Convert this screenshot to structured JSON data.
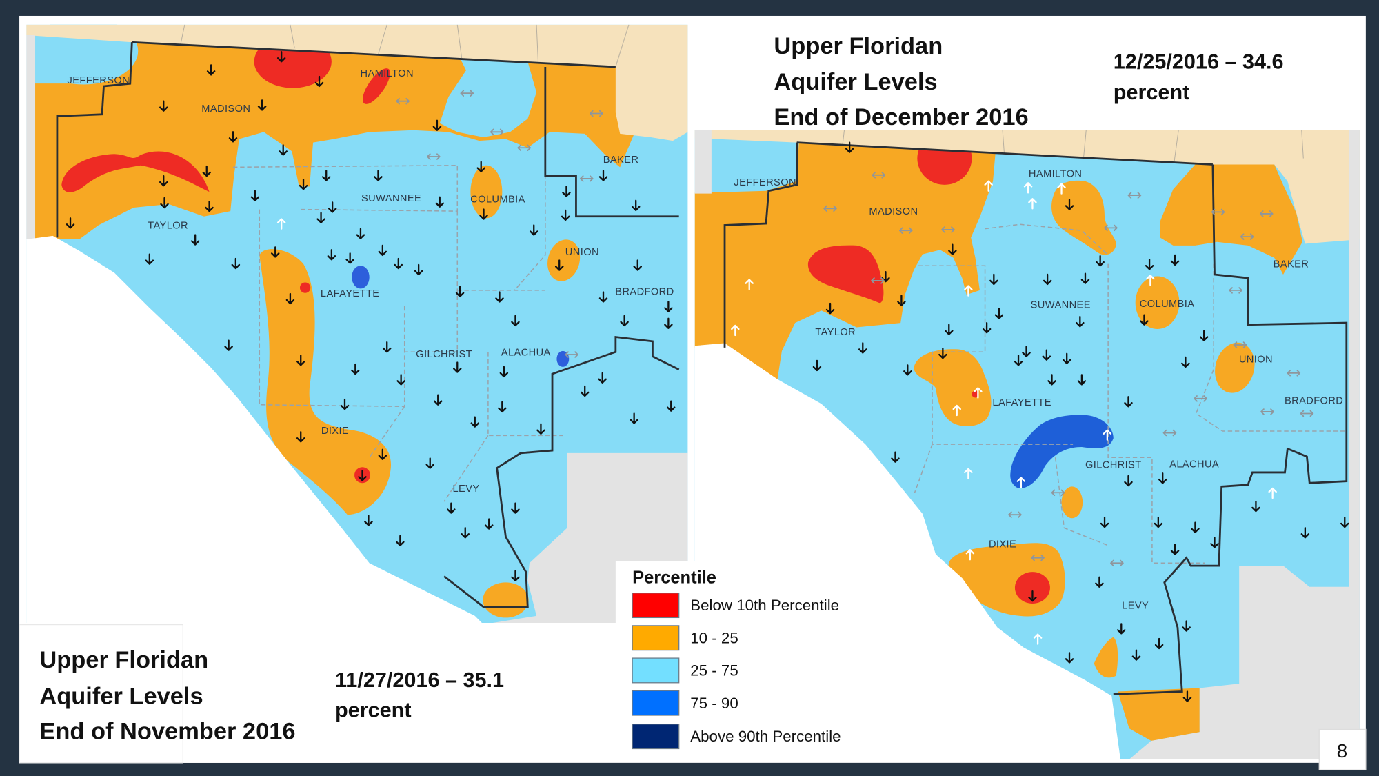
{
  "colors": {
    "below_10": "#ff0000",
    "p10_25": "#ffaa00",
    "p25_75": "#73dfff",
    "p75_90": "#0070ff",
    "above_90": "#002673",
    "georgia": "#f6e2bc",
    "other_land": "#e3e3e3",
    "gulf": "#ffffff",
    "slide_border": "#243342"
  },
  "november": {
    "title_lines": [
      "Upper Floridan",
      "Aquifer Levels",
      "End of November 2016"
    ],
    "date_line": "11/27/2016 – 35.1",
    "unit_line": "percent",
    "counties": [
      "JEFFERSON",
      "MADISON",
      "HAMILTON",
      "BAKER",
      "TAYLOR",
      "SUWANNEE",
      "COLUMBIA",
      "UNION",
      "LAFAYETTE",
      "BRADFORD",
      "GILCHRIST",
      "ALACHUA",
      "DIXIE",
      "LEVY"
    ]
  },
  "december": {
    "title_lines": [
      "Upper Floridan",
      "Aquifer Levels",
      "End of December 2016"
    ],
    "date_line": "12/25/2016 – 34.6",
    "unit_line": "percent",
    "counties": [
      "JEFFERSON",
      "MADISON",
      "HAMILTON",
      "BAKER",
      "TAYLOR",
      "SUWANNEE",
      "COLUMBIA",
      "UNION",
      "LAFAYETTE",
      "BRADFORD",
      "GILCHRIST",
      "ALACHUA",
      "DIXIE",
      "LEVY"
    ]
  },
  "legend": {
    "title": "Percentile",
    "items": [
      {
        "label": "Below 10th Percentile",
        "color": "#ff0000"
      },
      {
        "label": "10 - 25",
        "color": "#ffaa00"
      },
      {
        "label": "25 - 75",
        "color": "#73dfff"
      },
      {
        "label": "75 - 90",
        "color": "#0070ff"
      },
      {
        "label": "Above 90th Percentile",
        "color": "#002673"
      }
    ]
  },
  "page_number": "8"
}
